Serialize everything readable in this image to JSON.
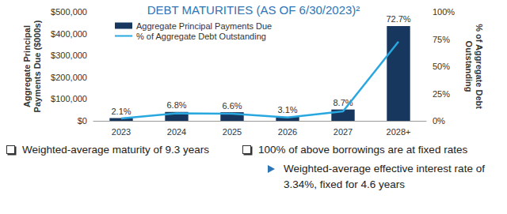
{
  "chart_data": {
    "type": "bar",
    "title": "DEBT MATURITIES (AS OF 6/30/2023)²",
    "categories": [
      "2023",
      "2024",
      "2025",
      "2026",
      "2027",
      "2028+"
    ],
    "series": [
      {
        "name": "Aggregate Principal Payments Due",
        "type": "bar",
        "color": "#17375e",
        "values": [
          12600,
          40700,
          39500,
          18500,
          52000,
          435000
        ]
      },
      {
        "name": "% of Aggregate Debt Outstanding",
        "type": "line",
        "axis": "y2",
        "color": "#29a8e0",
        "values": [
          2.1,
          6.8,
          6.6,
          3.1,
          8.7,
          72.7
        ],
        "value_labels": [
          "2.1%",
          "6.8%",
          "6.6%",
          "3.1%",
          "8.7%",
          "72.7%"
        ],
        "data_labels": true
      }
    ],
    "y_label": "Aggregate Principal\nPayments Due ($000s)",
    "y2_label": "% of Aggregate Debt\nOutstanding",
    "ylim": [
      0,
      500000
    ],
    "yticks": [
      {
        "value": 0,
        "label": "$0"
      },
      {
        "value": 100000,
        "label": "$100,000"
      },
      {
        "value": 200000,
        "label": "$200,000"
      },
      {
        "value": 300000,
        "label": "$300,000"
      },
      {
        "value": 400000,
        "label": "$400,000"
      },
      {
        "value": 500000,
        "label": "$500,000"
      }
    ],
    "y2lim": [
      0,
      100
    ],
    "y2ticks": [
      {
        "value": 0,
        "label": "0%"
      },
      {
        "value": 25,
        "label": "25%"
      },
      {
        "value": 50,
        "label": "50%"
      },
      {
        "value": 75,
        "label": "75%"
      },
      {
        "value": 100,
        "label": "100%"
      }
    ],
    "grid": false,
    "legend": "upper left",
    "annotations": [
      "Weighted-average maturity of 9.3 years",
      "100% of above borrowings are at fixed rates",
      "Weighted-average effective interest rate of 3.34%, fixed for 4.6 years"
    ]
  }
}
